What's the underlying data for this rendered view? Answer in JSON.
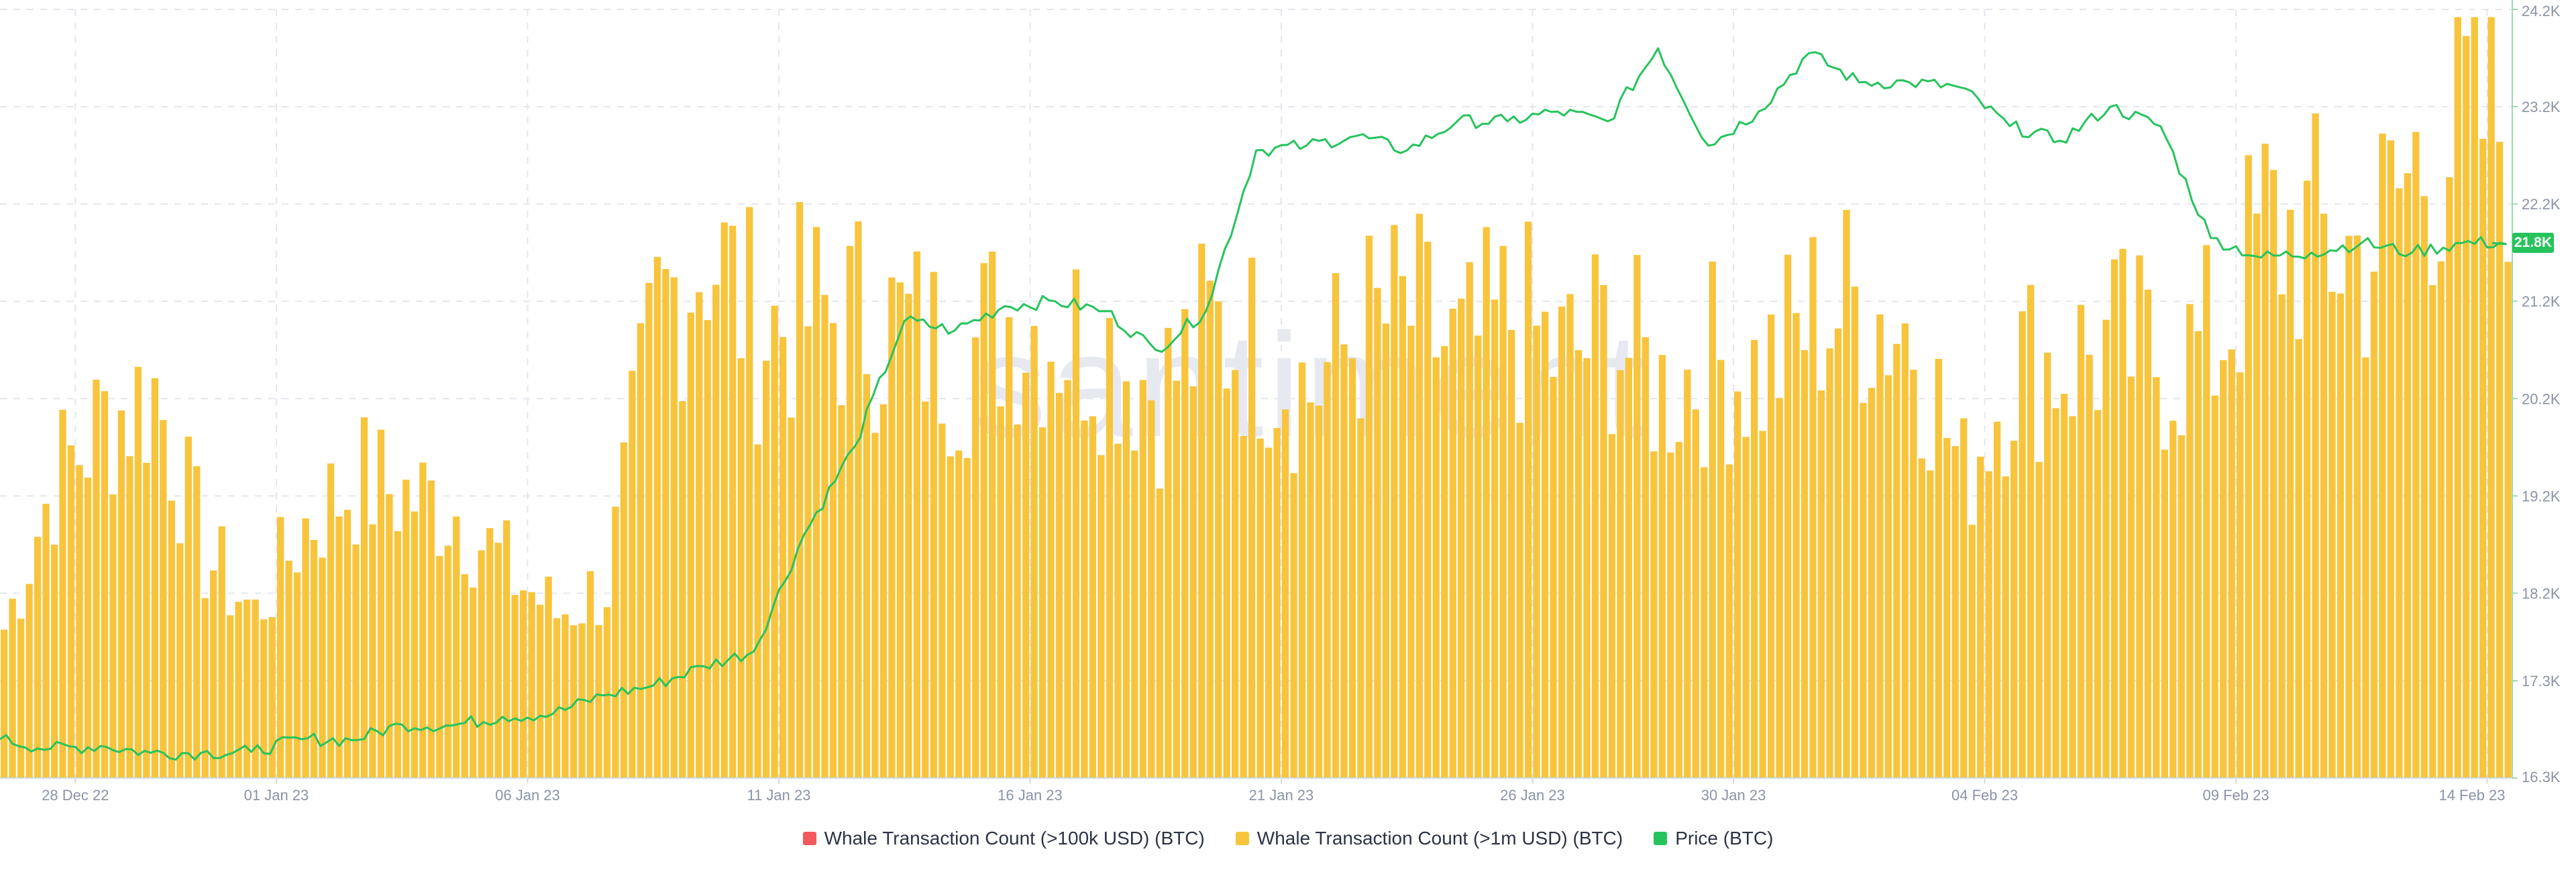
{
  "watermark": "santiment",
  "chart_data": {
    "type": "bar",
    "colors": {
      "tx100k": "#f4595d",
      "tx1m": "#f7c43c",
      "price": "#26c35c",
      "grid": "#e3e6ee"
    },
    "x_range": [
      "2022-12-27",
      "2023-02-14"
    ],
    "x_ticks": [
      {
        "date": "2022-12-28",
        "label": "28 Dec 22"
      },
      {
        "date": "2023-01-01",
        "label": "01 Jan 23"
      },
      {
        "date": "2023-01-06",
        "label": "06 Jan 23"
      },
      {
        "date": "2023-01-11",
        "label": "11 Jan 23"
      },
      {
        "date": "2023-01-16",
        "label": "16 Jan 23"
      },
      {
        "date": "2023-01-21",
        "label": "21 Jan 23"
      },
      {
        "date": "2023-01-26",
        "label": "26 Jan 23"
      },
      {
        "date": "2023-01-30",
        "label": "30 Jan 23"
      },
      {
        "date": "2023-02-04",
        "label": "04 Feb 23"
      },
      {
        "date": "2023-02-09",
        "label": "09 Feb 23"
      },
      {
        "date": "2023-02-14",
        "label": "14 Feb 23"
      }
    ],
    "price_axis": {
      "ylim": [
        16300,
        24200
      ],
      "ticks": [
        {
          "value": 16300,
          "label": "16.3K"
        },
        {
          "value": 17300,
          "label": "17.3K"
        },
        {
          "value": 18200,
          "label": "18.2K"
        },
        {
          "value": 19200,
          "label": "19.2K"
        },
        {
          "value": 20200,
          "label": "20.2K"
        },
        {
          "value": 21200,
          "label": "21.2K"
        },
        {
          "value": 22200,
          "label": "22.2K"
        },
        {
          "value": 23200,
          "label": "23.2K"
        },
        {
          "value": 24200,
          "label": "24.2K"
        }
      ],
      "current_label": "21.8K"
    },
    "tx_ylim": [
      0,
      100
    ],
    "grid": true,
    "legend_position": "bottom",
    "series": [
      {
        "name": "Whale Transaction Count (>100k USD) (BTC)",
        "color": "#f4595d",
        "type": "bar",
        "values": []
      },
      {
        "name": "Whale Transaction Count (>1m USD) (BTC)",
        "color": "#f7c43c",
        "type": "bar",
        "points": [
          [
            "2022-12-27",
            20
          ],
          [
            "2022-12-28",
            40
          ],
          [
            "2022-12-29",
            48
          ],
          [
            "2022-12-30",
            52
          ],
          [
            "2022-12-31",
            30
          ],
          [
            "2023-01-01",
            22
          ],
          [
            "2023-01-02",
            34
          ],
          [
            "2023-01-03",
            40
          ],
          [
            "2023-01-04",
            38
          ],
          [
            "2023-01-05",
            36
          ],
          [
            "2023-01-06",
            28
          ],
          [
            "2023-01-07",
            22
          ],
          [
            "2023-01-08",
            26
          ],
          [
            "2023-01-09",
            62
          ],
          [
            "2023-01-10",
            72
          ],
          [
            "2023-01-11",
            60
          ],
          [
            "2023-01-12",
            62
          ],
          [
            "2023-01-13",
            62
          ],
          [
            "2023-01-14",
            60
          ],
          [
            "2023-01-15",
            56
          ],
          [
            "2023-01-16",
            62
          ],
          [
            "2023-01-17",
            60
          ],
          [
            "2023-01-18",
            58
          ],
          [
            "2023-01-19",
            52
          ],
          [
            "2023-01-20",
            60
          ],
          [
            "2023-01-21",
            58
          ],
          [
            "2023-01-22",
            52
          ],
          [
            "2023-01-23",
            60
          ],
          [
            "2023-01-24",
            62
          ],
          [
            "2023-01-25",
            56
          ],
          [
            "2023-01-26",
            62
          ],
          [
            "2023-01-27",
            56
          ],
          [
            "2023-01-28",
            60
          ],
          [
            "2023-01-29",
            52
          ],
          [
            "2023-01-30",
            56
          ],
          [
            "2023-01-31",
            54
          ],
          [
            "2023-02-01",
            62
          ],
          [
            "2023-02-02",
            64
          ],
          [
            "2023-02-03",
            60
          ],
          [
            "2023-02-04",
            40
          ],
          [
            "2023-02-05",
            56
          ],
          [
            "2023-02-06",
            56
          ],
          [
            "2023-02-07",
            58
          ],
          [
            "2023-02-08",
            56
          ],
          [
            "2023-02-09",
            58
          ],
          [
            "2023-02-10",
            74
          ],
          [
            "2023-02-11",
            72
          ],
          [
            "2023-02-12",
            70
          ],
          [
            "2023-02-13",
            82
          ],
          [
            "2023-02-14",
            88
          ]
        ]
      },
      {
        "name": "Price (BTC)",
        "color": "#26c35c",
        "type": "line",
        "points": [
          [
            "2022-12-27",
            16700
          ],
          [
            "2022-12-28",
            16600
          ],
          [
            "2022-12-29",
            16630
          ],
          [
            "2022-12-30",
            16560
          ],
          [
            "2022-12-31",
            16560
          ],
          [
            "2023-01-01",
            16570
          ],
          [
            "2023-01-02",
            16700
          ],
          [
            "2023-01-03",
            16690
          ],
          [
            "2023-01-04",
            16850
          ],
          [
            "2023-01-05",
            16840
          ],
          [
            "2023-01-06",
            16930
          ],
          [
            "2023-01-07",
            16960
          ],
          [
            "2023-01-08",
            17150
          ],
          [
            "2023-01-09",
            17250
          ],
          [
            "2023-01-10",
            17450
          ],
          [
            "2023-01-11",
            17600
          ],
          [
            "2023-01-12",
            18800
          ],
          [
            "2023-01-13",
            19700
          ],
          [
            "2023-01-14",
            21000
          ],
          [
            "2023-01-15",
            20900
          ],
          [
            "2023-01-16",
            21150
          ],
          [
            "2023-01-17",
            21200
          ],
          [
            "2023-01-18",
            21100
          ],
          [
            "2023-01-19",
            20700
          ],
          [
            "2023-01-20",
            21100
          ],
          [
            "2023-01-21",
            22750
          ],
          [
            "2023-01-22",
            22800
          ],
          [
            "2023-01-23",
            22900
          ],
          [
            "2023-01-24",
            22750
          ],
          [
            "2023-01-25",
            23050
          ],
          [
            "2023-01-26",
            23050
          ],
          [
            "2023-01-27",
            23150
          ],
          [
            "2023-01-28",
            23050
          ],
          [
            "2023-01-29",
            23800
          ],
          [
            "2023-01-30",
            22800
          ],
          [
            "2023-01-31",
            23150
          ],
          [
            "2023-02-01",
            23750
          ],
          [
            "2023-02-02",
            23450
          ],
          [
            "2023-02-03",
            23450
          ],
          [
            "2023-02-04",
            23400
          ],
          [
            "2023-02-05",
            23000
          ],
          [
            "2023-02-06",
            22850
          ],
          [
            "2023-02-07",
            23200
          ],
          [
            "2023-02-08",
            23000
          ],
          [
            "2023-02-09",
            21850
          ],
          [
            "2023-02-10",
            21650
          ],
          [
            "2023-02-11",
            21700
          ],
          [
            "2023-02-12",
            21800
          ],
          [
            "2023-02-13",
            21700
          ],
          [
            "2023-02-14",
            21800
          ]
        ]
      }
    ]
  }
}
